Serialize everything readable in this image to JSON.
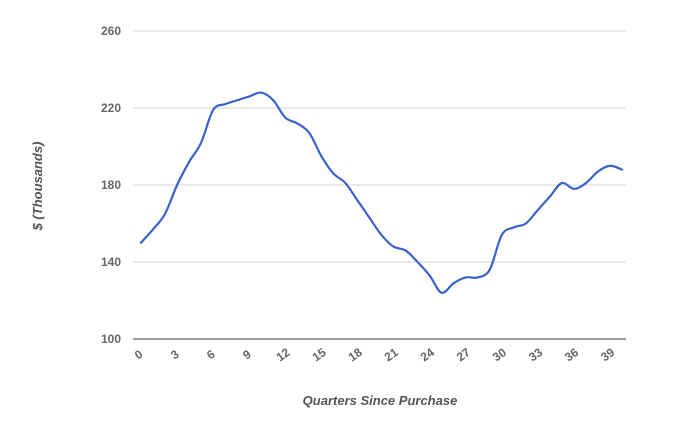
{
  "chart_data": {
    "type": "line",
    "title": "",
    "xlabel": "Quarters Since Purchase",
    "ylabel": "$ (Thousands)",
    "xlim": [
      0,
      40
    ],
    "ylim": [
      100,
      260
    ],
    "x_ticks": [
      0,
      3,
      6,
      9,
      12,
      15,
      18,
      21,
      24,
      27,
      30,
      33,
      36,
      39
    ],
    "y_ticks": [
      100,
      140,
      180,
      220,
      260
    ],
    "grid": true,
    "legend": "none",
    "series": [
      {
        "color": "#3a62c8",
        "x": [
          0,
          1,
          2,
          3,
          4,
          5,
          6,
          7,
          8,
          9,
          10,
          11,
          12,
          13,
          14,
          15,
          16,
          17,
          18,
          19,
          20,
          21,
          22,
          23,
          24,
          25,
          26,
          27,
          28,
          29,
          30,
          31,
          32,
          33,
          34,
          35,
          36,
          37,
          38,
          39,
          40
        ],
        "values": [
          150,
          157,
          165,
          180,
          192,
          202,
          219,
          222,
          224,
          226,
          228,
          224,
          215,
          212,
          207,
          195,
          186,
          181,
          172,
          163,
          154,
          148,
          146,
          140,
          133,
          124,
          129,
          132,
          132,
          136,
          154,
          158,
          160,
          167,
          174,
          181,
          178,
          181,
          187,
          190,
          188
        ]
      }
    ]
  }
}
